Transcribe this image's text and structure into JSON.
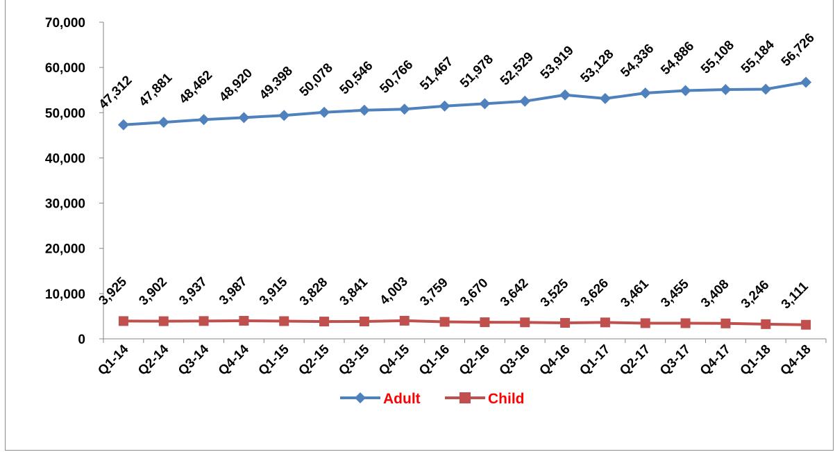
{
  "chart_data": {
    "type": "line",
    "title": "",
    "xlabel": "",
    "ylabel": "",
    "categories": [
      "Q1-14",
      "Q2-14",
      "Q3-14",
      "Q4-14",
      "Q1-15",
      "Q2-15",
      "Q3-15",
      "Q4-15",
      "Q1-16",
      "Q2-16",
      "Q3-16",
      "Q4-16",
      "Q1-17",
      "Q2-17",
      "Q3-17",
      "Q4-17",
      "Q1-18",
      "Q4-18"
    ],
    "ylim": [
      0,
      70000
    ],
    "yticks": [
      "0",
      "10,000",
      "20,000",
      "30,000",
      "40,000",
      "50,000",
      "60,000",
      "70,000"
    ],
    "grid": false,
    "legend": "bottom",
    "series": [
      {
        "name": "Adult",
        "color": "#4f81bd",
        "marker": "diamond",
        "values": [
          47312,
          47881,
          48462,
          48920,
          49398,
          50078,
          50546,
          50766,
          51467,
          51978,
          52529,
          53919,
          53128,
          54336,
          54886,
          55108,
          55184,
          56726
        ],
        "labels": [
          "47,312",
          "47,881",
          "48,462",
          "48,920",
          "49,398",
          "50,078",
          "50,546",
          "50,766",
          "51,467",
          "51,978",
          "52,529",
          "53,919",
          "53,128",
          "54,336",
          "54,886",
          "55,108",
          "55,184",
          "56,726"
        ]
      },
      {
        "name": "Child",
        "color": "#c0504d",
        "marker": "square",
        "values": [
          3925,
          3902,
          3937,
          3987,
          3915,
          3828,
          3841,
          4003,
          3759,
          3670,
          3642,
          3525,
          3626,
          3461,
          3455,
          3408,
          3246,
          3111
        ],
        "labels": [
          "3,925",
          "3,902",
          "3,937",
          "3,987",
          "3,915",
          "3,828",
          "3,841",
          "4,003",
          "3,759",
          "3,670",
          "3,642",
          "3,525",
          "3,626",
          "3,461",
          "3,455",
          "3,408",
          "3,246",
          "3,111"
        ]
      }
    ],
    "legend_text_color": "#ff0000"
  }
}
